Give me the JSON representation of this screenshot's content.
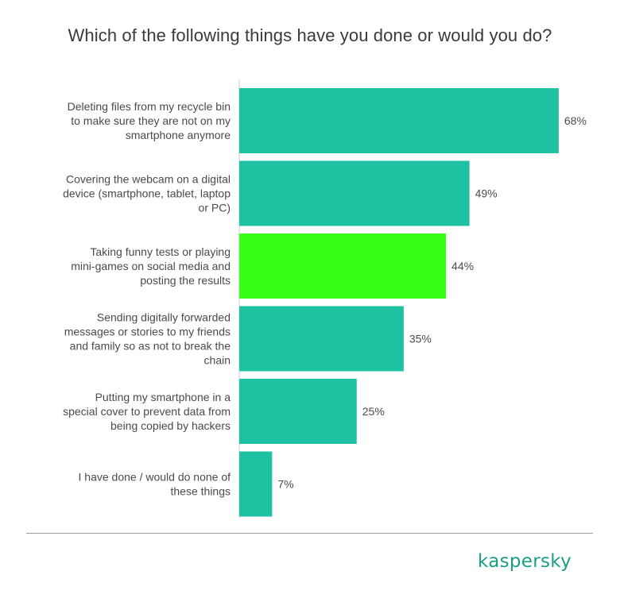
{
  "title": "Which of the following things have you done or would you do?",
  "brand": "kaspersky",
  "colors": {
    "bar_default": "#1ec1a1",
    "bar_highlight": "#37ff16",
    "axis_line": "#cfcfcf",
    "brand": "#1a9e86"
  },
  "chart_data": {
    "type": "bar",
    "orientation": "horizontal",
    "categories": [
      "Deleting files from my recycle bin to make sure they are not on my smartphone anymore",
      "Covering the webcam on a digital device (smartphone, tablet, laptop or PC)",
      "Taking funny tests or playing mini-games on social media and posting the results",
      "Sending digitally forwarded messages or stories to my friends and family so as not to break the chain",
      "Putting my smartphone in a special cover to prevent data from being copied by hackers",
      "I have done / would do none of these things"
    ],
    "category_lines": [
      [
        "Deleting files from my recycle bin",
        "to make sure they are not on my",
        "smartphone anymore"
      ],
      [
        "Covering the webcam on a digital",
        "device (smartphone, tablet, laptop",
        "or PC)"
      ],
      [
        "Taking funny tests or playing",
        "mini-games on social media and",
        "posting the results"
      ],
      [
        "Sending digitally forwarded",
        "messages or stories to my friends",
        "and family so as not to break the",
        "chain"
      ],
      [
        "Putting my smartphone in a",
        "special cover to prevent data from",
        "being copied by hackers"
      ],
      [
        "I have done / would do none of",
        "these things"
      ]
    ],
    "values": [
      68,
      49,
      44,
      35,
      25,
      7
    ],
    "value_labels": [
      "68%",
      "49%",
      "44%",
      "35%",
      "25%",
      "7%"
    ],
    "highlight_index": 2,
    "xlim": [
      0,
      100
    ],
    "unit": "%",
    "grid": false,
    "legend": "none"
  }
}
